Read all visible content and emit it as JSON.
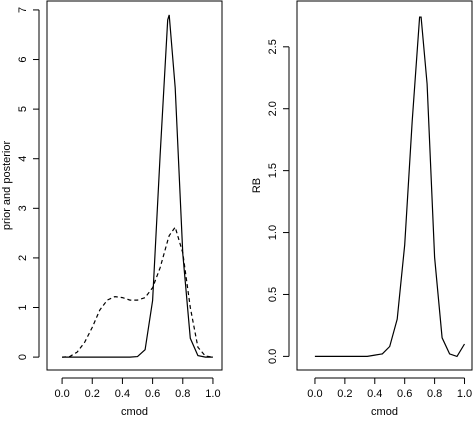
{
  "chart_data": [
    {
      "type": "line",
      "xlabel": "cmod",
      "ylabel": "prior and posterior",
      "xlim": [
        -0.1,
        1.06
      ],
      "ylim": [
        -0.26,
        7.18
      ],
      "xticks": [
        {
          "value": 0,
          "label": "0.0"
        },
        {
          "value": 0.2,
          "label": "0.2"
        },
        {
          "value": 0.4,
          "label": "0.4"
        },
        {
          "value": 0.6,
          "label": "0.6"
        },
        {
          "value": 0.8,
          "label": "0.8"
        },
        {
          "value": 1,
          "label": "1.0"
        }
      ],
      "yticks": [
        0,
        1,
        2,
        3,
        4,
        5,
        6,
        7
      ],
      "x": [
        0,
        0.05,
        0.1,
        0.15,
        0.2,
        0.25,
        0.3,
        0.35,
        0.4,
        0.45,
        0.5,
        0.55,
        0.6,
        0.65,
        0.7,
        0.71,
        0.75,
        0.8,
        0.85,
        0.9,
        0.95,
        1
      ],
      "series": [
        {
          "color": "#000000",
          "style": "solid",
          "values": [
            0,
            0,
            0,
            0,
            0,
            0,
            0,
            0,
            0,
            0,
            0.01,
            0.15,
            1.14,
            4.06,
            6.8,
            6.9,
            5.43,
            2.08,
            0.38,
            0.03,
            0,
            0
          ]
        },
        {
          "color": "#000000",
          "style": "dashed",
          "values": [
            0,
            0.01,
            0.1,
            0.3,
            0.6,
            0.95,
            1.15,
            1.22,
            1.2,
            1.15,
            1.15,
            1.2,
            1.4,
            1.8,
            2.35,
            2.45,
            2.62,
            2.1,
            1.0,
            0.2,
            0.02,
            0
          ]
        }
      ]
    },
    {
      "type": "line",
      "xlabel": "cmod",
      "ylabel": "RB",
      "xlim": [
        -0.12,
        1.05
      ],
      "ylim": [
        -0.11,
        2.87
      ],
      "xticks": [
        {
          "value": 0,
          "label": "0.0"
        },
        {
          "value": 0.2,
          "label": "0.2"
        },
        {
          "value": 0.4,
          "label": "0.4"
        },
        {
          "value": 0.6,
          "label": "0.6"
        },
        {
          "value": 0.8,
          "label": "0.8"
        },
        {
          "value": 1,
          "label": "1.0"
        }
      ],
      "yticks": [
        {
          "value": 0,
          "label": "0.0"
        },
        {
          "value": 0.5,
          "label": "0.5"
        },
        {
          "value": 1,
          "label": "1.0"
        },
        {
          "value": 1.5,
          "label": "1.5"
        },
        {
          "value": 2,
          "label": "2.0"
        },
        {
          "value": 2.5,
          "label": "2.5"
        }
      ],
      "x": [
        0,
        0.05,
        0.1,
        0.15,
        0.2,
        0.25,
        0.3,
        0.35,
        0.4,
        0.45,
        0.5,
        0.55,
        0.6,
        0.65,
        0.7,
        0.71,
        0.75,
        0.8,
        0.85,
        0.9,
        0.95,
        1
      ],
      "series": [
        {
          "color": "#000000",
          "style": "solid",
          "values": [
            0,
            0,
            0,
            0,
            0,
            0,
            0,
            0,
            0.01,
            0.02,
            0.08,
            0.3,
            0.9,
            1.9,
            2.74,
            2.74,
            2.2,
            0.8,
            0.15,
            0.02,
            0,
            0.1
          ]
        }
      ]
    }
  ]
}
